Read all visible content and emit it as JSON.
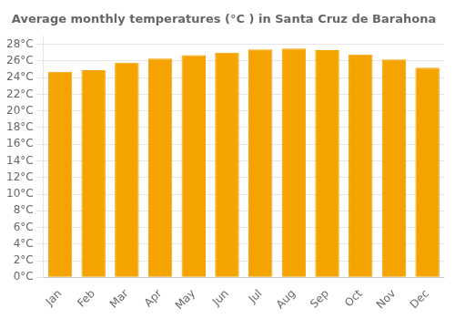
{
  "chart_data": {
    "type": "bar",
    "title": "Average monthly temperatures (°C ) in Santa Cruz de Barahona",
    "categories": [
      "Jan",
      "Feb",
      "Mar",
      "Apr",
      "May",
      "Jun",
      "Jul",
      "Aug",
      "Sep",
      "Oct",
      "Nov",
      "Dec"
    ],
    "values": [
      24.7,
      24.9,
      25.8,
      26.3,
      26.7,
      27.0,
      27.4,
      27.5,
      27.3,
      26.8,
      26.2,
      25.2
    ],
    "color": "#F5A300",
    "ylim": [
      0,
      29
    ],
    "yticks": [
      {
        "value": 0,
        "label": "0°C"
      },
      {
        "value": 2,
        "label": "2°C"
      },
      {
        "value": 4,
        "label": "4°C"
      },
      {
        "value": 6,
        "label": "6°C"
      },
      {
        "value": 8,
        "label": "8°C"
      },
      {
        "value": 10,
        "label": "10°C"
      },
      {
        "value": 12,
        "label": "12°C"
      },
      {
        "value": 14,
        "label": "14°C"
      },
      {
        "value": 16,
        "label": "16°C"
      },
      {
        "value": 18,
        "label": "18°C"
      },
      {
        "value": 20,
        "label": "20°C"
      },
      {
        "value": 22,
        "label": "22°C"
      },
      {
        "value": 24,
        "label": "24°C"
      },
      {
        "value": 26,
        "label": "26°C"
      },
      {
        "value": 28,
        "label": "28°C"
      }
    ],
    "grid": true
  }
}
